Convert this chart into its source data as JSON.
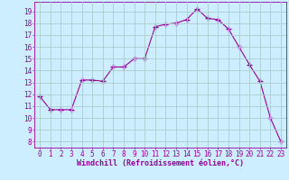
{
  "x": [
    0,
    1,
    2,
    3,
    4,
    5,
    6,
    7,
    8,
    9,
    10,
    11,
    12,
    13,
    14,
    15,
    16,
    17,
    18,
    19,
    20,
    21,
    22,
    23
  ],
  "y": [
    11.8,
    10.7,
    10.7,
    10.7,
    13.2,
    13.2,
    13.1,
    14.3,
    14.3,
    15.0,
    15.0,
    17.7,
    17.9,
    18.0,
    18.3,
    19.2,
    18.4,
    18.3,
    17.5,
    16.0,
    14.5,
    13.1,
    10.0,
    8.0
  ],
  "line_color": "#990099",
  "marker": "+",
  "marker_size": 4,
  "bg_color": "#cceeff",
  "grid_color": "#aacccc",
  "xlabel": "Windchill (Refroidissement éolien,°C)",
  "xlabel_color": "#990099",
  "ylim": [
    7.5,
    19.8
  ],
  "xlim": [
    -0.5,
    23.5
  ],
  "yticks": [
    8,
    9,
    10,
    11,
    12,
    13,
    14,
    15,
    16,
    17,
    18,
    19
  ],
  "xticks": [
    0,
    1,
    2,
    3,
    4,
    5,
    6,
    7,
    8,
    9,
    10,
    11,
    12,
    13,
    14,
    15,
    16,
    17,
    18,
    19,
    20,
    21,
    22,
    23
  ],
  "tick_color": "#990099",
  "spine_color": "#990099",
  "tick_fontsize": 5.5,
  "xlabel_fontsize": 6.0
}
